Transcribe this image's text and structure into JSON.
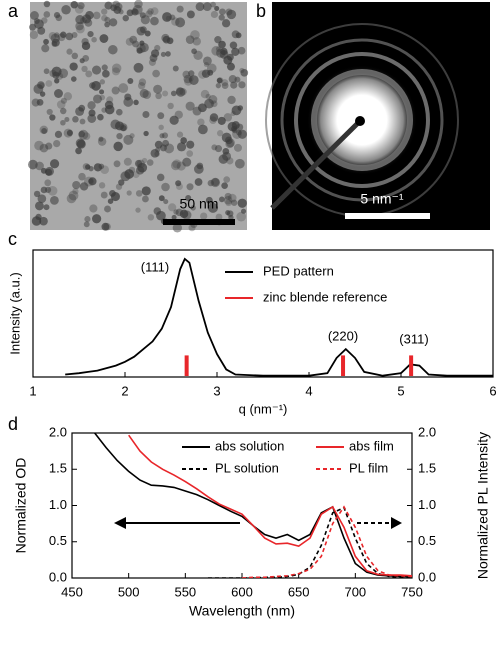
{
  "panels": {
    "a": {
      "label": "a",
      "scale_bar": "50 nm"
    },
    "b": {
      "label": "b",
      "scale_bar": "5 nm⁻¹"
    }
  },
  "chart_data": [
    {
      "panel_label": "c",
      "type": "line",
      "x_label": "q (nm⁻¹)",
      "y_label": "Intensity (a.u.)",
      "xlim": [
        1,
        6
      ],
      "xticks": [
        1,
        2,
        3,
        4,
        5,
        6
      ],
      "ylim": [
        0,
        1
      ],
      "legend": "upper right",
      "annotations": [
        "(111)",
        "(220)",
        "(311)"
      ],
      "series": [
        {
          "name": "PED pattern",
          "color": "#000000",
          "style": "solid",
          "x": [
            1.35,
            1.5,
            1.6,
            1.7,
            1.8,
            1.9,
            2.0,
            2.1,
            2.2,
            2.3,
            2.4,
            2.5,
            2.6,
            2.65,
            2.7,
            2.8,
            2.9,
            3.0,
            3.1,
            3.2,
            3.5,
            4.0,
            4.2,
            4.3,
            4.4,
            4.5,
            4.6,
            4.8,
            5.0,
            5.1,
            5.2,
            5.3,
            5.5,
            6.0
          ],
          "values": [
            0.02,
            0.03,
            0.04,
            0.05,
            0.07,
            0.09,
            0.12,
            0.16,
            0.22,
            0.28,
            0.38,
            0.55,
            0.85,
            0.93,
            0.9,
            0.6,
            0.35,
            0.18,
            0.06,
            0.02,
            0.01,
            0.01,
            0.03,
            0.15,
            0.22,
            0.15,
            0.04,
            0.01,
            0.03,
            0.1,
            0.09,
            0.02,
            0.01,
            0.01
          ]
        },
        {
          "name": "zinc blende reference",
          "color": "#e8262a",
          "style": "bar",
          "x": [
            2.67,
            4.37,
            5.11
          ],
          "values": [
            0.17,
            0.17,
            0.17
          ]
        }
      ]
    },
    {
      "panel_label": "d",
      "type": "line",
      "x_label": "Wavelength (nm)",
      "y_label": "Normalized OD",
      "y2_label": "Normalized PL Intensity",
      "xlim": [
        450,
        750
      ],
      "xticks": [
        450,
        500,
        550,
        600,
        650,
        700,
        750
      ],
      "ylim": [
        0,
        2
      ],
      "yticks": [
        {
          "value": 0,
          "label": "0.0"
        },
        {
          "value": 0.5,
          "label": "0.5"
        },
        {
          "value": 1,
          "label": "1.0"
        },
        {
          "value": 1.5,
          "label": "1.5"
        },
        {
          "value": 2,
          "label": "2.0"
        }
      ],
      "y2lim": [
        0,
        2
      ],
      "y2ticks": [
        {
          "value": 0,
          "label": "0.0"
        },
        {
          "value": 0.5,
          "label": "0.5"
        },
        {
          "value": 1,
          "label": "1.0"
        },
        {
          "value": 1.5,
          "label": "1.5"
        },
        {
          "value": 2,
          "label": "2.0"
        }
      ],
      "legend": "upper right",
      "x": [
        470,
        480,
        490,
        500,
        510,
        520,
        530,
        540,
        550,
        560,
        570,
        580,
        590,
        600,
        610,
        620,
        630,
        640,
        650,
        660,
        670,
        680,
        690,
        700,
        710,
        720,
        730,
        740,
        750
      ],
      "series": [
        {
          "name": "abs solution",
          "color": "#000000",
          "style": "solid",
          "values": [
            2.0,
            1.8,
            1.62,
            1.47,
            1.35,
            1.28,
            1.27,
            1.25,
            1.2,
            1.15,
            1.08,
            1.0,
            0.92,
            0.85,
            0.72,
            0.6,
            0.55,
            0.6,
            0.52,
            0.6,
            0.9,
            0.98,
            0.55,
            0.2,
            0.08,
            0.04,
            0.03,
            0.02,
            0.02
          ]
        },
        {
          "name": "PL solution",
          "color": "#000000",
          "style": "dashed",
          "axis": "y2",
          "values": [
            null,
            null,
            null,
            null,
            null,
            null,
            null,
            null,
            null,
            null,
            0.0,
            0.0,
            0.0,
            0.0,
            0.0,
            0.01,
            0.01,
            0.02,
            0.05,
            0.15,
            0.45,
            0.9,
            0.97,
            0.55,
            0.2,
            0.06,
            0.02,
            0.01,
            0.0
          ]
        },
        {
          "name": "abs film",
          "color": "#e8262a",
          "style": "solid",
          "values": [
            null,
            null,
            null,
            1.97,
            1.75,
            1.6,
            1.5,
            1.42,
            1.33,
            1.23,
            1.12,
            1.02,
            0.95,
            0.88,
            0.72,
            0.55,
            0.47,
            0.48,
            0.44,
            0.55,
            0.88,
            0.98,
            0.7,
            0.3,
            0.1,
            0.05,
            0.04,
            0.04,
            0.03
          ]
        },
        {
          "name": "PL film",
          "color": "#e8262a",
          "style": "dashed",
          "axis": "y2",
          "values": [
            null,
            null,
            null,
            null,
            null,
            null,
            null,
            null,
            null,
            null,
            null,
            null,
            null,
            0.0,
            0.01,
            0.01,
            0.02,
            0.03,
            0.06,
            0.12,
            0.3,
            0.75,
            0.98,
            0.7,
            0.3,
            0.1,
            0.04,
            0.03,
            0.02
          ]
        }
      ]
    }
  ]
}
